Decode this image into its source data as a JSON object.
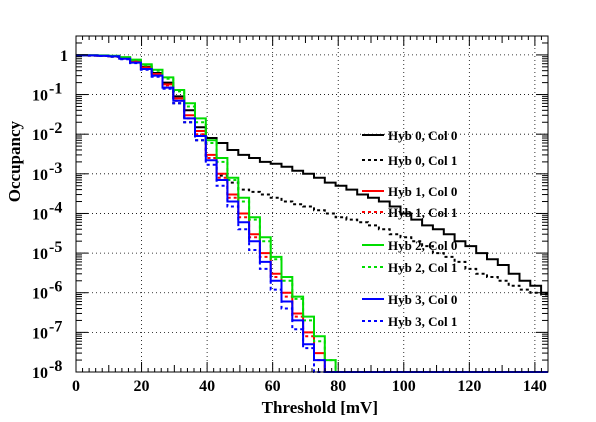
{
  "chart_data": {
    "type": "line",
    "step": true,
    "xlabel": "Threshold [mV]",
    "ylabel": "Occupancy",
    "xlim": [
      0,
      144
    ],
    "ylim": [
      1e-08,
      3
    ],
    "yscale": "log",
    "grid": true,
    "x_ticks": [
      "0",
      "20",
      "40",
      "60",
      "80",
      "100",
      "120",
      "140"
    ],
    "y_ticks": [
      {
        "base": "1",
        "exp": ""
      },
      {
        "base": "10",
        "exp": "-1"
      },
      {
        "base": "10",
        "exp": "-2"
      },
      {
        "base": "10",
        "exp": "-3"
      },
      {
        "base": "10",
        "exp": "-4"
      },
      {
        "base": "10",
        "exp": "-5"
      },
      {
        "base": "10",
        "exp": "-6"
      },
      {
        "base": "10",
        "exp": "-7"
      },
      {
        "base": "10",
        "exp": "-8"
      }
    ],
    "bin_width": 3.3,
    "series": [
      {
        "name": "Hyb 0, Col 0",
        "color": "#000000",
        "dash": "solid",
        "values": [
          0.98,
          0.97,
          0.95,
          0.93,
          0.85,
          0.72,
          0.5,
          0.35,
          0.2,
          0.09,
          0.04,
          0.015,
          0.008,
          0.006,
          0.004,
          0.003,
          0.0025,
          0.002,
          0.0018,
          0.0015,
          0.0012,
          0.001,
          0.0008,
          0.0006,
          0.0005,
          0.0004,
          0.0003,
          0.00025,
          0.0002,
          0.00015,
          0.0001,
          7e-05,
          5e-05,
          4e-05,
          3e-05,
          2e-05,
          1.5e-05,
          1e-05,
          7e-06,
          5e-06,
          3e-06,
          2e-06,
          1.5e-06,
          1e-06
        ]
      },
      {
        "name": "Hyb 0, Col 1",
        "color": "#000000",
        "dash": "dotted",
        "values": [
          0.97,
          0.96,
          0.94,
          0.9,
          0.8,
          0.65,
          0.45,
          0.3,
          0.15,
          0.06,
          0.02,
          0.007,
          0.0025,
          0.0009,
          0.0006,
          0.0004,
          0.00035,
          0.0003,
          0.00025,
          0.0002,
          0.00017,
          0.00015,
          0.00012,
          0.0001,
          8e-05,
          7e-05,
          6e-05,
          5e-05,
          4e-05,
          3e-05,
          2.5e-05,
          2e-05,
          1.5e-05,
          1e-05,
          8e-06,
          6e-06,
          4e-06,
          3e-06,
          2.5e-06,
          2e-06,
          1.5e-06,
          1.2e-06,
          1e-06,
          9e-07
        ]
      },
      {
        "name": "Hyb 1, Col 0",
        "color": "#ff0000",
        "dash": "solid",
        "values": [
          0.98,
          0.97,
          0.96,
          0.93,
          0.82,
          0.68,
          0.48,
          0.33,
          0.18,
          0.08,
          0.03,
          0.012,
          0.003,
          0.001,
          0.0003,
          0.0001,
          3e-05,
          1e-05,
          3e-06,
          1e-06,
          3e-07,
          1e-07,
          3e-08,
          1e-08,
          1e-08,
          1e-08,
          1e-08,
          1e-08,
          1e-08,
          1e-08,
          1e-08,
          1e-08,
          1e-08,
          1e-08,
          1e-08,
          1e-08,
          1e-08,
          1e-08,
          1e-08,
          1e-08,
          1e-08,
          1e-08,
          1e-08,
          1e-08
        ]
      },
      {
        "name": "Hyb 1, Col 1",
        "color": "#ff0000",
        "dash": "dotted",
        "values": [
          0.97,
          0.96,
          0.95,
          0.92,
          0.8,
          0.66,
          0.46,
          0.31,
          0.17,
          0.07,
          0.025,
          0.01,
          0.0025,
          0.0008,
          0.00025,
          8e-05,
          2.5e-05,
          8e-06,
          2.5e-06,
          8e-07,
          2.5e-07,
          8e-08,
          2e-08,
          1e-08,
          1e-08,
          1e-08,
          1e-08,
          1e-08,
          1e-08,
          1e-08,
          1e-08,
          1e-08,
          1e-08,
          1e-08,
          1e-08,
          1e-08,
          1e-08,
          1e-08,
          1e-08,
          1e-08,
          1e-08,
          1e-08,
          1e-08,
          1e-08
        ]
      },
      {
        "name": "Hyb 2, Col 0",
        "color": "#00dd00",
        "dash": "solid",
        "values": [
          0.98,
          0.98,
          0.97,
          0.95,
          0.88,
          0.76,
          0.58,
          0.42,
          0.27,
          0.13,
          0.06,
          0.025,
          0.007,
          0.0025,
          0.0008,
          0.00025,
          8e-05,
          2.5e-05,
          8e-06,
          2.5e-06,
          8e-07,
          2.5e-07,
          8e-08,
          2e-08,
          1e-08,
          1e-08,
          1e-08,
          1e-08,
          1e-08,
          1e-08,
          1e-08,
          1e-08,
          1e-08,
          1e-08,
          1e-08,
          1e-08,
          1e-08,
          1e-08,
          1e-08,
          1e-08,
          1e-08,
          1e-08,
          1e-08,
          1e-08
        ]
      },
      {
        "name": "Hyb 2, Col 1",
        "color": "#00dd00",
        "dash": "dotted",
        "values": [
          0.97,
          0.97,
          0.96,
          0.93,
          0.86,
          0.74,
          0.55,
          0.4,
          0.25,
          0.12,
          0.05,
          0.02,
          0.006,
          0.002,
          0.0007,
          0.0002,
          7e-05,
          2e-05,
          7e-06,
          2e-06,
          7e-07,
          2e-07,
          6e-08,
          2e-08,
          1e-08,
          1e-08,
          1e-08,
          1e-08,
          1e-08,
          1e-08,
          1e-08,
          1e-08,
          1e-08,
          1e-08,
          1e-08,
          1e-08,
          1e-08,
          1e-08,
          1e-08,
          1e-08,
          1e-08,
          1e-08,
          1e-08,
          1e-08
        ]
      },
      {
        "name": "Hyb 3, Col 0",
        "color": "#0000ff",
        "dash": "solid",
        "values": [
          0.98,
          0.97,
          0.95,
          0.92,
          0.8,
          0.64,
          0.44,
          0.3,
          0.15,
          0.07,
          0.025,
          0.009,
          0.0022,
          0.0007,
          0.0002,
          6e-05,
          2e-05,
          6e-06,
          2e-06,
          6e-07,
          2e-07,
          5e-08,
          2e-08,
          1e-08,
          1e-08,
          1e-08,
          1e-08,
          1e-08,
          1e-08,
          1e-08,
          1e-08,
          1e-08,
          1e-08,
          1e-08,
          1e-08,
          1e-08,
          1e-08,
          1e-08,
          1e-08,
          1e-08,
          1e-08,
          1e-08,
          1e-08,
          1e-08
        ]
      },
      {
        "name": "Hyb 3, Col 1",
        "color": "#0000ff",
        "dash": "dotted",
        "values": [
          0.97,
          0.96,
          0.94,
          0.9,
          0.78,
          0.62,
          0.42,
          0.28,
          0.14,
          0.06,
          0.02,
          0.007,
          0.0017,
          0.0005,
          0.00015,
          4e-05,
          1.2e-05,
          4e-06,
          1.2e-06,
          4e-07,
          1.2e-07,
          4e-08,
          1e-08,
          1e-08,
          1e-08,
          1e-08,
          1e-08,
          1e-08,
          1e-08,
          1e-08,
          1e-08,
          1e-08,
          1e-08,
          1e-08,
          1e-08,
          1e-08,
          1e-08,
          1e-08,
          1e-08,
          1e-08,
          1e-08,
          1e-08,
          1e-08,
          1e-08
        ]
      }
    ]
  }
}
